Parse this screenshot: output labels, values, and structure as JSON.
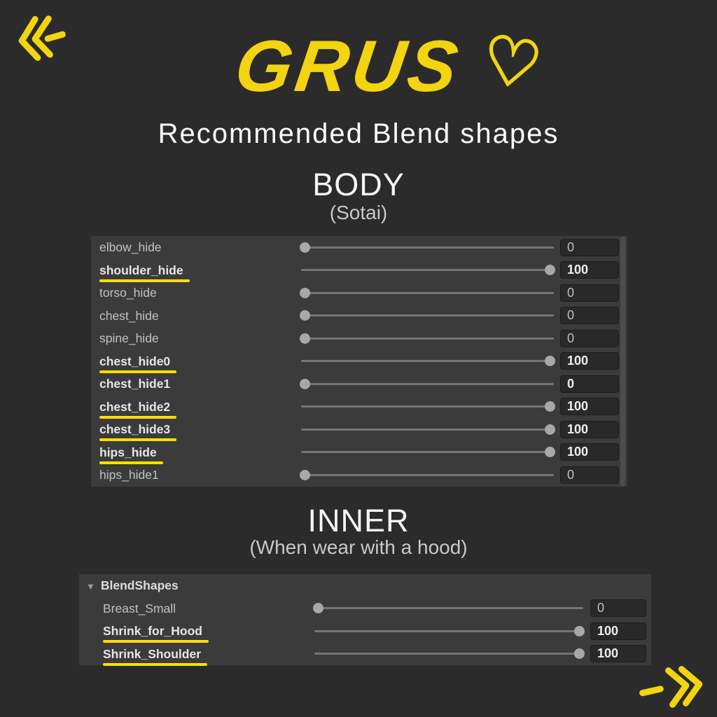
{
  "colors": {
    "accent_yellow": "#f2d411",
    "underline_yellow": "#ffdf00",
    "page_background": "#2b2b2b",
    "panel_background": "#3b3b3b"
  },
  "icons": {
    "prev": "double-chevron-left-dash",
    "next": "dash-double-chevron-right",
    "foldout": "▼"
  },
  "header": {
    "title": "GRUS",
    "heart": "♡",
    "subtitle": "Recommended Blend shapes"
  },
  "body_section": {
    "heading": "BODY",
    "subheading": "(Sotai)",
    "rows": [
      {
        "label": "elbow_hide",
        "value": "0",
        "bold": false,
        "underline": false
      },
      {
        "label": "shoulder_hide",
        "value": "100",
        "bold": true,
        "underline": true
      },
      {
        "label": "torso_hide",
        "value": "0",
        "bold": false,
        "underline": false
      },
      {
        "label": "chest_hide",
        "value": "0",
        "bold": false,
        "underline": false
      },
      {
        "label": "spine_hide",
        "value": "0",
        "bold": false,
        "underline": false
      },
      {
        "label": "chest_hide0",
        "value": "100",
        "bold": true,
        "underline": true
      },
      {
        "label": "chest_hide1",
        "value": "0",
        "bold": true,
        "underline": false
      },
      {
        "label": "chest_hide2",
        "value": "100",
        "bold": true,
        "underline": true
      },
      {
        "label": "chest_hide3",
        "value": "100",
        "bold": true,
        "underline": true
      },
      {
        "label": "hips_hide",
        "value": "100",
        "bold": true,
        "underline": true
      },
      {
        "label": "hips_hide1",
        "value": "0",
        "bold": false,
        "underline": false
      }
    ]
  },
  "inner_section": {
    "heading": "INNER",
    "subheading": "(When wear with a hood)",
    "panel_header": "BlendShapes",
    "foldout_icon": "▼",
    "rows": [
      {
        "label": "Breast_Small",
        "value": "0",
        "bold": false,
        "underline": false
      },
      {
        "label": "Shrink_for_Hood",
        "value": "100",
        "bold": true,
        "underline": true
      },
      {
        "label": "Shrink_Shoulder",
        "value": "100",
        "bold": true,
        "underline": true
      }
    ]
  }
}
